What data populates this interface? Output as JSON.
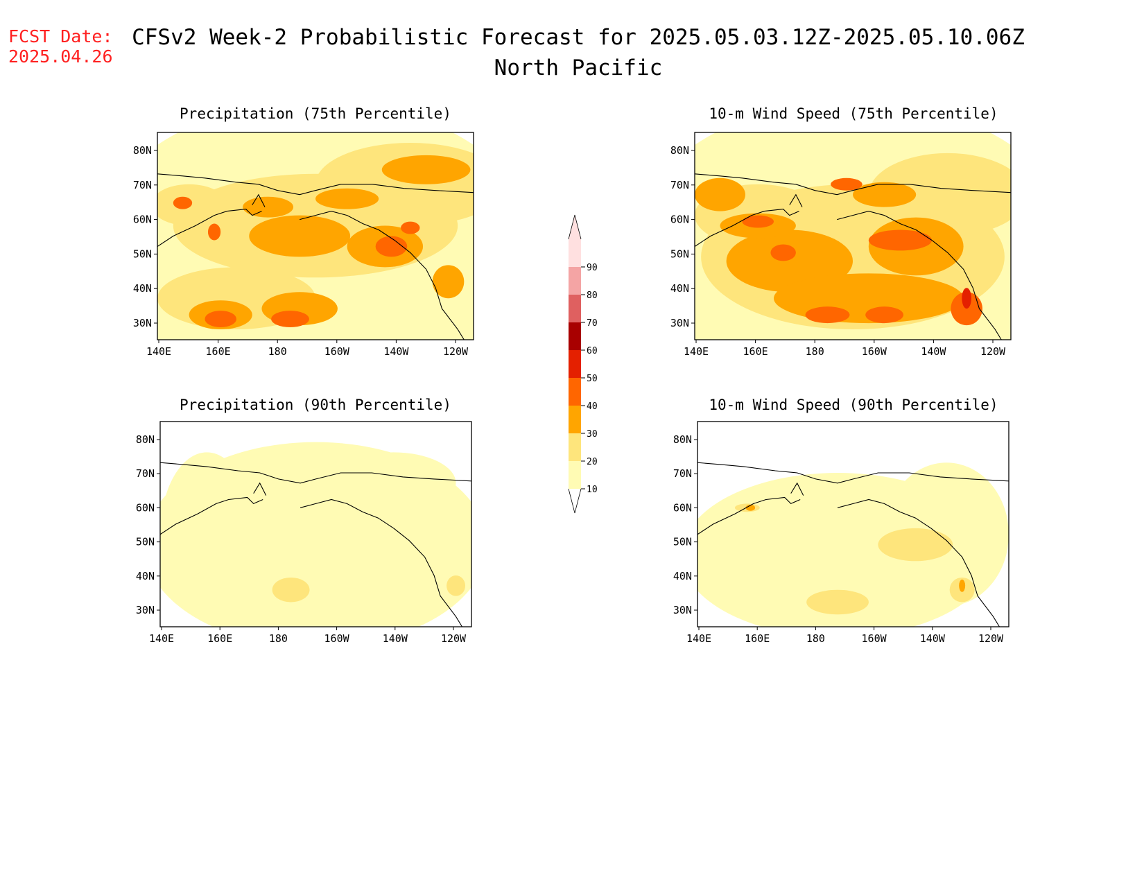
{
  "header": {
    "fcst_label": "FCST Date:",
    "fcst_date": "2025.04.26",
    "title": "CFSv2 Week-2 Probabilistic Forecast for 2025.05.03.12Z-2025.05.10.06Z",
    "subtitle": "North Pacific"
  },
  "colors": {
    "c10": "#fffbb4",
    "c20": "#fee57c",
    "c30": "#ffa500",
    "c40": "#ff6600",
    "c50": "#e42000",
    "c60": "#a80000",
    "c70": "#df6060",
    "c80": "#f4a4a4",
    "c90": "#ffe0e0"
  },
  "axes": {
    "x_ticks": [
      "140E",
      "160E",
      "180",
      "160W",
      "140W",
      "120W"
    ],
    "y_ticks": [
      "80N",
      "70N",
      "60N",
      "50N",
      "40N",
      "30N"
    ]
  },
  "colorbar": {
    "labels": [
      "10",
      "20",
      "30",
      "40",
      "50",
      "60",
      "70",
      "80",
      "90"
    ]
  },
  "panels": [
    {
      "id": "precip75",
      "title": "Precipitation (75th Percentile)"
    },
    {
      "id": "wind75",
      "title": "10-m Wind Speed (75th Percentile)"
    },
    {
      "id": "precip90",
      "title": "Precipitation (90th Percentile)"
    },
    {
      "id": "wind90",
      "title": "10-m Wind Speed (90th Percentile)"
    }
  ]
}
